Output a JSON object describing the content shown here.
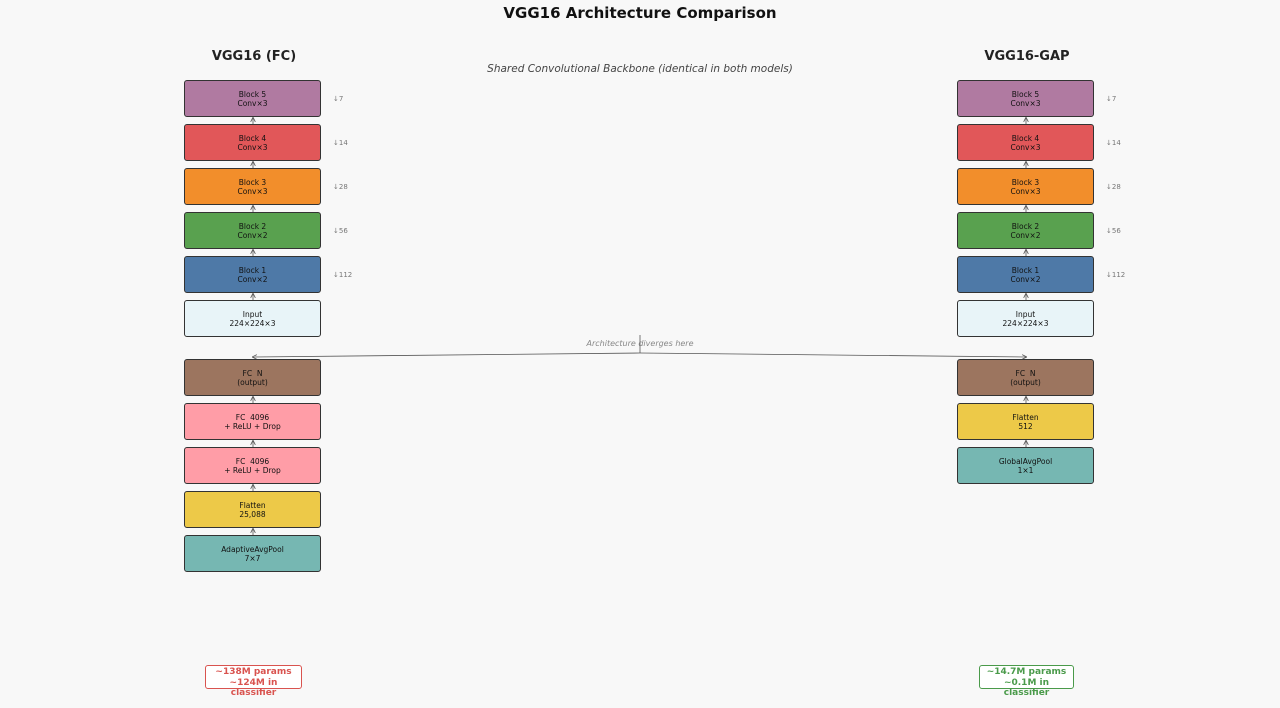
{
  "title": "VGG16 Architecture Comparison",
  "subtitle": "Shared Convolutional Backbone  (identical in both models)",
  "diverge_label": "Architecture diverges here",
  "colors": {
    "block5": "#b07aa1",
    "block4": "#e15759",
    "block3": "#f28e2b",
    "block2": "#59a14f",
    "block1": "#4e79a7",
    "input": "#e8f4f8",
    "fc_out": "#9c755f",
    "fc_hidden": "#ff9da7",
    "flatten": "#edc948",
    "pool": "#76b7b2",
    "left_summary": "#d9534f",
    "right_summary": "#4a9a4a"
  },
  "left": {
    "title": "VGG16 (FC)",
    "backbone": [
      {
        "line1": "Block 5",
        "line2": "Conv×3",
        "res": "↓7",
        "color": "block5"
      },
      {
        "line1": "Block 4",
        "line2": "Conv×3",
        "res": "↓14",
        "color": "block4"
      },
      {
        "line1": "Block 3",
        "line2": "Conv×3",
        "res": "↓28",
        "color": "block3"
      },
      {
        "line1": "Block 2",
        "line2": "Conv×2",
        "res": "↓56",
        "color": "block2"
      },
      {
        "line1": "Block 1",
        "line2": "Conv×2",
        "res": "↓112",
        "color": "block1"
      },
      {
        "line1": "Input",
        "line2": "224×224×3",
        "res": "",
        "color": "input"
      }
    ],
    "head": [
      {
        "line1": "FC  N",
        "line2": "(output)",
        "color": "fc_out"
      },
      {
        "line1": "FC  4096",
        "line2": "+ ReLU + Drop",
        "color": "fc_hidden"
      },
      {
        "line1": "FC  4096",
        "line2": "+ ReLU + Drop",
        "color": "fc_hidden"
      },
      {
        "line1": "Flatten",
        "line2": "25,088",
        "color": "flatten"
      },
      {
        "line1": "AdaptiveAvgPool",
        "line2": "7×7",
        "color": "pool"
      }
    ],
    "summary_line1": "~138M params",
    "summary_line2": "~124M in classifier"
  },
  "right": {
    "title": "VGG16-GAP",
    "backbone": [
      {
        "line1": "Block 5",
        "line2": "Conv×3",
        "res": "↓7",
        "color": "block5"
      },
      {
        "line1": "Block 4",
        "line2": "Conv×3",
        "res": "↓14",
        "color": "block4"
      },
      {
        "line1": "Block 3",
        "line2": "Conv×3",
        "res": "↓28",
        "color": "block3"
      },
      {
        "line1": "Block 2",
        "line2": "Conv×2",
        "res": "↓56",
        "color": "block2"
      },
      {
        "line1": "Block 1",
        "line2": "Conv×2",
        "res": "↓112",
        "color": "block1"
      },
      {
        "line1": "Input",
        "line2": "224×224×3",
        "res": "",
        "color": "input"
      }
    ],
    "head": [
      {
        "line1": "FC  N",
        "line2": "(output)",
        "color": "fc_out"
      },
      {
        "line1": "Flatten",
        "line2": "512",
        "color": "flatten"
      },
      {
        "line1": "GlobalAvgPool",
        "line2": "1×1",
        "color": "pool"
      }
    ],
    "summary_line1": "~14.7M params",
    "summary_line2": "~0.1M in classifier"
  }
}
